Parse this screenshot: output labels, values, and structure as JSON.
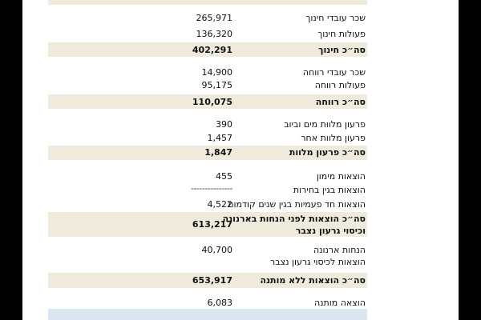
{
  "rows": [
    {
      "label": "שכר עובדי חינוך",
      "value": "265,971"
    },
    {
      "label": "פעולות חינוך",
      "value": "136,320"
    },
    {
      "label": "סה״כ חינוך",
      "value": "402,291"
    },
    {
      "label": "שכר עובדי רווחה",
      "value": "14,900"
    },
    {
      "label": "פעולות רווחה",
      "value": "95,175"
    },
    {
      "label": "סה״כ רווחה",
      "value": "110,075"
    },
    {
      "label": "פרעון מלוות מים וביוב",
      "value": "390"
    },
    {
      "label": "פרעון מלוות אחר",
      "value": "1,457"
    },
    {
      "label": "סה״כ פרעון מלוות",
      "value": "1,847"
    },
    {
      "label": "הוצאות מימון",
      "value": "455"
    },
    {
      "label": "הוצאות בגין בחירות",
      "value": "---------------"
    },
    {
      "label": "הוצאות חד פעמיות בגין שנים קודמות",
      "value": "4,522"
    },
    {
      "label": [
        "סה״כ הוצאות לפני הנחות בארנונה",
        "וכיסוי גרעון נצבר"
      ],
      "value": "613,217"
    },
    {
      "label": "הנחות ארנונה",
      "value": "40,700"
    },
    {
      "label": "הוצאות לכיסוי גרעון נצבר"
    },
    {
      "label": "סה״כ הוצאות ללא מותנה",
      "value": "653,917"
    },
    {
      "label": "הוצאה מותנה",
      "value": "6,083"
    }
  ]
}
